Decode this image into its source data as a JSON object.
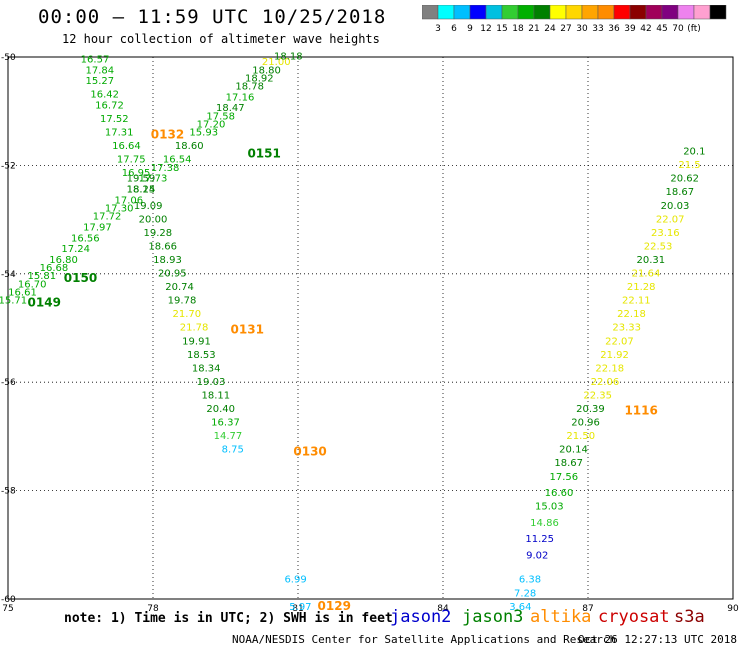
{
  "header": {
    "title": "00:00 – 11:59 UTC 10/25/2018",
    "subtitle": "12 hour collection of altimeter wave heights"
  },
  "colorbar": {
    "colors": [
      "#808080",
      "#00ffff",
      "#00bfff",
      "#0000ff",
      "#00c0e0",
      "#32cd32",
      "#00b000",
      "#008000",
      "#ffff00",
      "#ffd700",
      "#ffa500",
      "#ff8c00",
      "#ff0000",
      "#8b0000",
      "#a0005a",
      "#800080",
      "#ee82ee",
      "#ffa0d0",
      "#000000"
    ],
    "labels": [
      "3",
      "6",
      "9",
      "12",
      "15",
      "18",
      "21",
      "24",
      "27",
      "30",
      "33",
      "36",
      "39",
      "42",
      "45",
      "70",
      "(ft)"
    ]
  },
  "chart_data": {
    "type": "scatter",
    "xlim": [
      75,
      90
    ],
    "ylim": [
      -60,
      -50
    ],
    "xticks": [
      "75",
      "78",
      "81",
      "84",
      "87",
      "90"
    ],
    "yticks": [
      "-50",
      "-52",
      "-54",
      "-56",
      "-58",
      "-60"
    ],
    "grid": "dotted",
    "color_scale": [
      {
        "max": 9,
        "color": "#00bfff"
      },
      {
        "max": 12,
        "color": "#0000c8"
      },
      {
        "max": 15,
        "color": "#32cd32"
      },
      {
        "max": 18,
        "color": "#00aa00"
      },
      {
        "max": 21,
        "color": "#008000"
      },
      {
        "max": 24,
        "color": "#e6e600"
      },
      {
        "max": 99,
        "color": "#ffd700"
      }
    ],
    "pass_color": "#ff8c00",
    "pass_colors": {
      "0150": "#008000",
      "0149": "#008000",
      "0151": "#008000",
      "1116": "#ff8c00",
      "0131": "#ff8c00",
      "0130": "#ff8c00",
      "0132": "#ff8c00",
      "0129": "#ff8c00"
    },
    "tracks": [
      {
        "name": "0149/0150/0151",
        "points": [
          [
            75.1,
            -54.55,
            "15.71"
          ],
          [
            75.3,
            -54.4,
            "16.61"
          ],
          [
            75.5,
            -54.25,
            "16.70"
          ],
          [
            75.7,
            -54.1,
            "15.81"
          ],
          [
            75.95,
            -53.95,
            "16.68"
          ],
          [
            76.15,
            -53.8,
            "16.80"
          ],
          [
            76.4,
            -53.6,
            "17.24"
          ],
          [
            76.6,
            -53.4,
            "16.56"
          ],
          [
            76.85,
            -53.2,
            "17.97"
          ],
          [
            77.05,
            -53.0,
            "17.72"
          ],
          [
            77.3,
            -52.85,
            "17.30"
          ],
          [
            77.5,
            -52.7,
            "17.06"
          ],
          [
            77.75,
            -52.5,
            "18.14"
          ],
          [
            78.0,
            -52.3,
            "17.73"
          ],
          [
            78.25,
            -52.1,
            "17.38"
          ],
          [
            78.5,
            -51.95,
            "16.54"
          ],
          [
            78.75,
            -51.7,
            "18.60"
          ],
          [
            79.05,
            -51.45,
            "15.93"
          ],
          [
            79.2,
            -51.3,
            "17.20"
          ],
          [
            79.4,
            -51.15,
            "17.58"
          ],
          [
            79.6,
            -51.0,
            "18.47"
          ],
          [
            79.8,
            -50.8,
            "17.16"
          ],
          [
            80.0,
            -50.6,
            "18.78"
          ],
          [
            80.2,
            -50.45,
            "18.92"
          ],
          [
            80.35,
            -50.3,
            "18.80"
          ],
          [
            80.55,
            -50.15,
            "21.00"
          ],
          [
            80.8,
            -50.05,
            "18.18"
          ]
        ]
      },
      {
        "name": "0130/0131/0132",
        "points": [
          [
            76.8,
            -50.1,
            "16.57"
          ],
          [
            76.9,
            -50.3,
            "17.84"
          ],
          [
            76.9,
            -50.5,
            "15.27"
          ],
          [
            77.0,
            -50.75,
            "16.42"
          ],
          [
            77.1,
            -50.95,
            "16.72"
          ],
          [
            77.2,
            -51.2,
            "17.52"
          ],
          [
            77.3,
            -51.45,
            "17.31"
          ],
          [
            77.45,
            -51.7,
            "16.64"
          ],
          [
            77.55,
            -51.95,
            "17.75"
          ],
          [
            77.65,
            -52.2,
            "16.95"
          ],
          [
            77.75,
            -52.3,
            "19.59"
          ],
          [
            77.75,
            -52.5,
            "18.25"
          ],
          [
            77.9,
            -52.8,
            "19.09"
          ],
          [
            78.0,
            -53.05,
            "20.00"
          ],
          [
            78.1,
            -53.3,
            "19.28"
          ],
          [
            78.2,
            -53.55,
            "18.66"
          ],
          [
            78.3,
            -53.8,
            "18.93"
          ],
          [
            78.4,
            -54.05,
            "20.95"
          ],
          [
            78.55,
            -54.3,
            "20.74"
          ],
          [
            78.6,
            -54.55,
            "19.78"
          ],
          [
            78.7,
            -54.8,
            "21.70"
          ],
          [
            78.85,
            -55.05,
            "21.78"
          ],
          [
            78.9,
            -55.3,
            "19.91"
          ],
          [
            79.0,
            -55.55,
            "18.53"
          ],
          [
            79.1,
            -55.8,
            "18.34"
          ],
          [
            79.2,
            -56.05,
            "19.03"
          ],
          [
            79.3,
            -56.3,
            "18.11"
          ],
          [
            79.4,
            -56.55,
            "20.40"
          ],
          [
            79.5,
            -56.8,
            "16.37"
          ],
          [
            79.55,
            -57.05,
            "14.77"
          ],
          [
            79.65,
            -57.3,
            "8.75"
          ]
        ]
      },
      {
        "name": "0129",
        "points": [
          [
            80.95,
            -59.7,
            "6.99"
          ],
          [
            81.05,
            -60.2,
            "5.97"
          ]
        ]
      },
      {
        "name": "1116",
        "points": [
          [
            85.6,
            -60.2,
            "3.64"
          ],
          [
            85.7,
            -59.95,
            "7.28"
          ],
          [
            85.8,
            -59.7,
            "6.38"
          ],
          [
            85.95,
            -59.25,
            "9.02"
          ],
          [
            86.0,
            -58.95,
            "11.25"
          ],
          [
            86.1,
            -58.65,
            "14.86"
          ],
          [
            86.2,
            -58.35,
            "15.03"
          ],
          [
            86.4,
            -58.1,
            "16.60"
          ],
          [
            86.5,
            -57.8,
            "17.56"
          ],
          [
            86.6,
            -57.55,
            "18.67"
          ],
          [
            86.7,
            -57.3,
            "20.14"
          ],
          [
            86.85,
            -57.05,
            "21.50"
          ],
          [
            86.95,
            -56.8,
            "20.96"
          ],
          [
            87.05,
            -56.55,
            "20.39"
          ],
          [
            87.2,
            -56.3,
            "22.35"
          ],
          [
            87.35,
            -56.05,
            "22.06"
          ],
          [
            87.45,
            -55.8,
            "22.18"
          ],
          [
            87.55,
            -55.55,
            "21.92"
          ],
          [
            87.65,
            -55.3,
            "22.07"
          ],
          [
            87.8,
            -55.05,
            "23.33"
          ],
          [
            87.9,
            -54.8,
            "22.18"
          ],
          [
            88.0,
            -54.55,
            "22.11"
          ],
          [
            88.1,
            -54.3,
            "21.28"
          ],
          [
            88.2,
            -54.05,
            "21.64"
          ],
          [
            88.3,
            -53.8,
            "20.31"
          ],
          [
            88.45,
            -53.55,
            "22.53"
          ],
          [
            88.6,
            -53.3,
            "23.16"
          ],
          [
            88.7,
            -53.05,
            "22.07"
          ],
          [
            88.8,
            -52.8,
            "20.03"
          ],
          [
            88.9,
            -52.55,
            "18.67"
          ],
          [
            89.0,
            -52.3,
            "20.62"
          ],
          [
            89.1,
            -52.05,
            "21.5"
          ],
          [
            89.2,
            -51.8,
            "20.1"
          ]
        ]
      }
    ],
    "pass_labels": [
      {
        "text": "0149",
        "x": 75.75,
        "y": -54.6
      },
      {
        "text": "0150",
        "x": 76.5,
        "y": -54.15
      },
      {
        "text": "0151",
        "x": 80.3,
        "y": -51.85
      },
      {
        "text": "0132",
        "x": 78.3,
        "y": -51.5
      },
      {
        "text": "0131",
        "x": 79.95,
        "y": -55.1
      },
      {
        "text": "0130",
        "x": 81.25,
        "y": -57.35
      },
      {
        "text": "0129",
        "x": 81.75,
        "y": -60.2
      },
      {
        "text": "1116",
        "x": 88.1,
        "y": -56.6
      }
    ]
  },
  "footer": {
    "note": "note: 1) Time is in UTC; 2) SWH is in feet",
    "credit": "NOAA/NESDIS Center for Satellite Applications and Research",
    "timestamp": "Oct 26 12:27:13 UTC 2018",
    "legend": [
      {
        "label": "jason2",
        "color": "#0000cc"
      },
      {
        "label": "jason3",
        "color": "#008000"
      },
      {
        "label": "altika",
        "color": "#ff8c00"
      },
      {
        "label": "cryosat",
        "color": "#cc0000"
      },
      {
        "label": "s3a",
        "color": "#8b0000"
      }
    ]
  }
}
